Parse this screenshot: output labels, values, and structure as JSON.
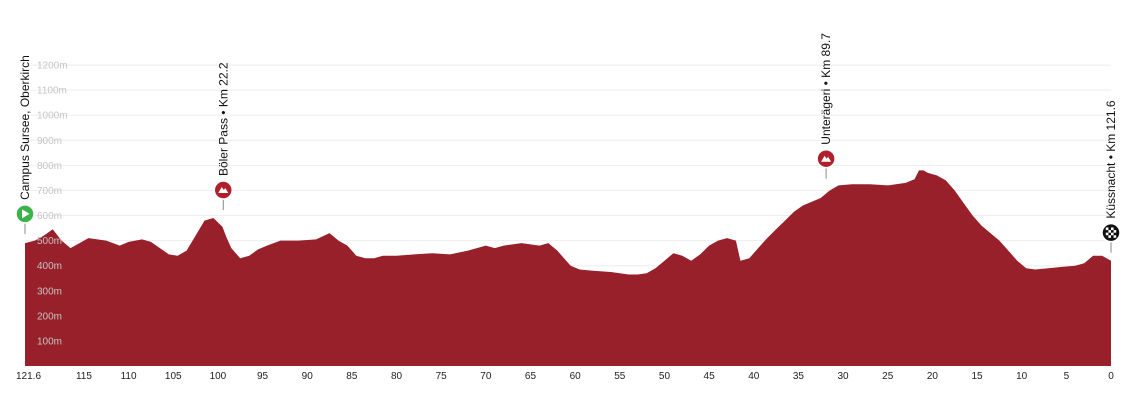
{
  "chart_data": {
    "type": "area",
    "title": "",
    "xlabel": "",
    "ylabel": "",
    "x_reversed": true,
    "xlim": [
      121.6,
      0
    ],
    "ylim": [
      0,
      1300
    ],
    "grid": true,
    "color": "#97202a",
    "y_ticks": [
      "100m",
      "200m",
      "300m",
      "400m",
      "500m",
      "600m",
      "700m",
      "800m",
      "900m",
      "1000m",
      "1100m",
      "1200m"
    ],
    "y_tick_values": [
      100,
      200,
      300,
      400,
      500,
      600,
      700,
      800,
      900,
      1000,
      1100,
      1200
    ],
    "x_ticks": [
      "121.6",
      "115",
      "110",
      "105",
      "100",
      "95",
      "90",
      "85",
      "80",
      "75",
      "70",
      "65",
      "60",
      "55",
      "50",
      "45",
      "40",
      "35",
      "30",
      "25",
      "20",
      "15",
      "10",
      "5",
      "0"
    ],
    "x_tick_values": [
      121.6,
      115,
      110,
      105,
      100,
      95,
      90,
      85,
      80,
      75,
      70,
      65,
      60,
      55,
      50,
      45,
      40,
      35,
      30,
      25,
      20,
      15,
      10,
      5,
      0
    ],
    "series": [
      {
        "x": [
          121.6,
          120.5,
          119.5,
          118.5,
          117.5,
          116.5,
          115.5,
          114.5,
          113.5,
          112.5,
          111,
          110,
          108.5,
          107.5,
          106.5,
          105.5,
          104.5,
          103.5,
          102.5,
          101.5,
          100.5,
          99.5,
          99.0,
          98.5,
          97.5,
          96.5,
          95.5,
          94.5,
          93,
          91,
          89,
          87.5,
          86.5,
          85.5,
          84.5,
          83.5,
          82.5,
          81.5,
          80,
          78,
          76,
          74,
          72,
          71,
          70,
          69,
          68,
          66,
          64,
          63,
          62,
          61,
          60.5,
          59.5,
          58,
          56,
          54,
          53,
          52,
          51,
          50,
          49,
          48,
          47,
          46,
          45,
          44,
          43,
          42,
          41.5,
          40.5,
          39.5,
          38.5,
          37.5,
          36.5,
          35.5,
          34.5,
          33.5,
          32.5,
          31.5,
          30.5,
          29,
          27,
          25,
          23,
          22,
          21.5,
          21,
          20.5,
          19.5,
          18.5,
          17.5,
          16.5,
          15.5,
          14.5,
          13.5,
          12.5,
          11.5,
          10.5,
          9.5,
          8.5,
          7,
          5.5,
          4,
          3,
          2,
          1,
          0
        ],
        "y": [
          490,
          500,
          520,
          545,
          500,
          470,
          490,
          510,
          505,
          500,
          480,
          495,
          505,
          495,
          470,
          445,
          440,
          460,
          520,
          580,
          590,
          555,
          510,
          470,
          430,
          440,
          465,
          480,
          500,
          500,
          505,
          530,
          500,
          480,
          440,
          430,
          430,
          440,
          440,
          445,
          450,
          445,
          460,
          470,
          480,
          470,
          480,
          490,
          480,
          490,
          460,
          420,
          400,
          385,
          380,
          375,
          365,
          365,
          370,
          390,
          420,
          450,
          440,
          420,
          445,
          480,
          500,
          510,
          500,
          420,
          430,
          470,
          510,
          545,
          580,
          615,
          640,
          655,
          670,
          700,
          720,
          725,
          725,
          720,
          730,
          745,
          780,
          780,
          770,
          760,
          740,
          700,
          650,
          600,
          560,
          530,
          500,
          460,
          420,
          390,
          385,
          390,
          395,
          400,
          410,
          440,
          440,
          420
        ]
      }
    ],
    "markers": [
      {
        "km": 121.6,
        "elev": 495,
        "type": "start",
        "label": "Campus Sursee, Oberkirch",
        "color": "#3bb34a"
      },
      {
        "km": 99.4,
        "elev": 590,
        "type": "climb",
        "label": "Böler Pass • Km 22.2",
        "color": "#b0202c"
      },
      {
        "km": 31.9,
        "elev": 715,
        "type": "climb",
        "label": "Unterägeri • Km 89.7",
        "color": "#b0202c"
      },
      {
        "km": 0,
        "elev": 420,
        "type": "finish",
        "label": "Küssnacht • Km 121.6",
        "color": "#111111"
      }
    ]
  }
}
